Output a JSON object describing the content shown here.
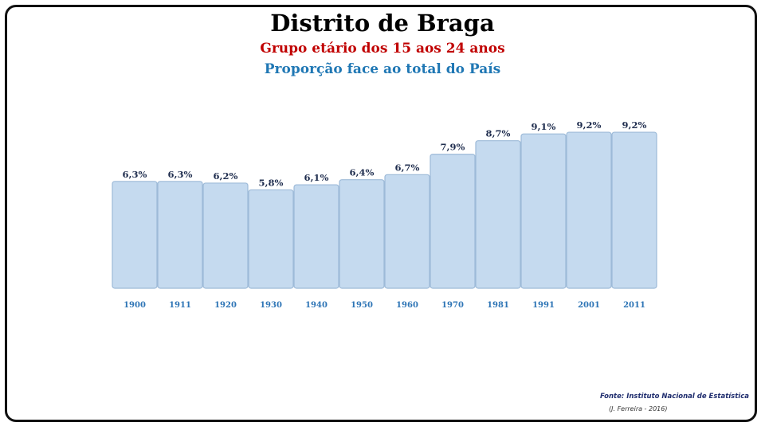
{
  "colors": {
    "title": "#000000",
    "subtitle": "#c00000",
    "subtitle2": "#1f77b4",
    "bar_fill": "#c5daef",
    "bar_stroke": "#9dbad8",
    "value_label": "#1f2d4e",
    "tick_label": "#2e75b6",
    "source": "#1f2d6e"
  },
  "chart_data": {
    "type": "bar",
    "title": "Distrito de Braga",
    "subtitle": "Grupo etário dos 15 aos 24 anos",
    "subtitle2": "Proporção face ao total do País",
    "categories": [
      "1900",
      "1911",
      "1920",
      "1930",
      "1940",
      "1950",
      "1960",
      "1970",
      "1981",
      "1991",
      "2001",
      "2011"
    ],
    "values": [
      6.3,
      6.3,
      6.2,
      5.8,
      6.1,
      6.4,
      6.7,
      7.9,
      8.7,
      9.1,
      9.2,
      9.2
    ],
    "data_labels": [
      "6,3%",
      "6,3%",
      "6,2%",
      "5,8%",
      "6,1%",
      "6,4%",
      "6,7%",
      "7,9%",
      "8,7%",
      "9,1%",
      "9,2%",
      "9,2%"
    ],
    "xlabel": "",
    "ylabel": "",
    "ylim": [
      0,
      10
    ],
    "grid": false,
    "legend": "none"
  },
  "footer": {
    "source": "Fonte: Instituto Nacional de Estatística",
    "author": "(J. Ferreira - 2016)"
  }
}
